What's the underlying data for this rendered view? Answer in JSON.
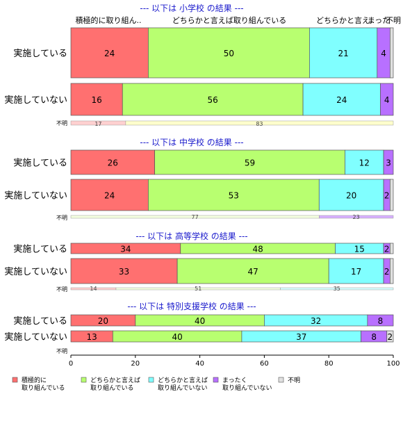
{
  "chart_data": {
    "type": "bar",
    "orientation": "horizontal",
    "stacked": true,
    "xlim": [
      0,
      100
    ],
    "x_ticks": [
      "0",
      "20",
      "40",
      "60",
      "80",
      "100"
    ],
    "column_headers": [
      "積極的に取り組ん..",
      "どちらかと言えば取り組んでいる",
      "どちらかと言え..",
      "まった",
      "不明"
    ],
    "categories_legend": [
      "積極的に\n取り組んでいる",
      "どちらかと言えば\n取り組んでいる",
      "どちらかと言えば\n取り組んでいない",
      "まったく\n取り組んでいない",
      "不明"
    ],
    "colors": [
      "#ff7070",
      "#b8ff70",
      "#80ffff",
      "#b870ff",
      "#e0e0e0"
    ],
    "panels": [
      {
        "title": "--- 以下は 小学校 の結果 ---",
        "rows": [
          {
            "label": "実施している",
            "values": [
              24,
              50,
              21,
              4,
              1
            ]
          },
          {
            "label": "実施していない",
            "values": [
              16,
              56,
              24,
              4,
              0
            ]
          }
        ],
        "unknown": {
          "label": "不明",
          "values": [
            17,
            83
          ],
          "colors": [
            "#ffd0d0",
            "#ffffcc"
          ]
        }
      },
      {
        "title": "--- 以下は 中学校 の結果 ---",
        "rows": [
          {
            "label": "実施している",
            "values": [
              26,
              59,
              12,
              3,
              0
            ]
          },
          {
            "label": "実施していない",
            "values": [
              24,
              53,
              20,
              2,
              1
            ]
          }
        ],
        "unknown": {
          "label": "不明",
          "values": [
            77,
            23
          ],
          "colors": [
            "#f4ffe0",
            "#d8b0ff"
          ]
        }
      },
      {
        "title": "--- 以下は 高等学校 の結果 ---",
        "rows": [
          {
            "label": "実施している",
            "values": [
              34,
              48,
              15,
              2,
              1
            ]
          },
          {
            "label": "実施していない",
            "values": [
              33,
              47,
              17,
              2,
              1
            ]
          }
        ],
        "unknown": {
          "label": "不明",
          "values": [
            14,
            51,
            35
          ],
          "colors": [
            "#ffd0d0",
            "#f4ffe0",
            "#d8ffff"
          ]
        }
      },
      {
        "title": "--- 以下は 特別支援学校 の結果 ---",
        "rows": [
          {
            "label": "実施している",
            "values": [
              20,
              40,
              32,
              8,
              0
            ]
          },
          {
            "label": "実施していない",
            "values": [
              13,
              40,
              37,
              8,
              2
            ]
          }
        ],
        "unknown": {
          "label": "不明",
          "values": [],
          "colors": []
        }
      }
    ]
  }
}
